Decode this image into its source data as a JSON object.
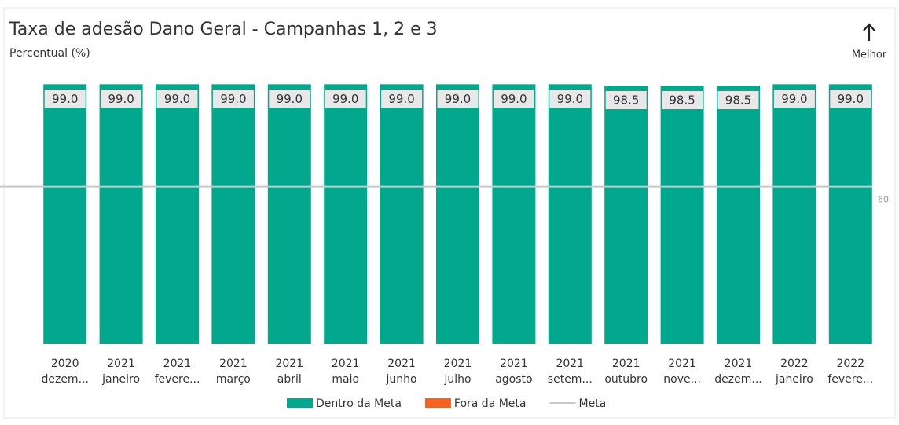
{
  "chart_data": {
    "type": "bar",
    "title": "Taxa de adesão Dano Geral - Campanhas 1, 2 e 3",
    "subtitle": "Percentual (%)",
    "annotation": "Melhor",
    "categories": [
      [
        "2020",
        "dezem..."
      ],
      [
        "2021",
        "janeiro"
      ],
      [
        "2021",
        "fevere..."
      ],
      [
        "2021",
        "março"
      ],
      [
        "2021",
        "abril"
      ],
      [
        "2021",
        "maio"
      ],
      [
        "2021",
        "junho"
      ],
      [
        "2021",
        "julho"
      ],
      [
        "2021",
        "agosto"
      ],
      [
        "2021",
        "setem..."
      ],
      [
        "2021",
        "outubro"
      ],
      [
        "2021",
        "nove..."
      ],
      [
        "2021",
        "dezem..."
      ],
      [
        "2022",
        "janeiro"
      ],
      [
        "2022",
        "fevere..."
      ]
    ],
    "series": [
      {
        "name": "Dentro da Meta",
        "color": "#01a88d",
        "values": [
          99,
          99,
          99,
          99,
          99,
          99,
          99,
          99,
          99,
          99,
          98.5,
          98.5,
          98.5,
          99,
          99
        ],
        "value_labels": [
          "99.0",
          "99.0",
          "99.0",
          "99.0",
          "99.0",
          "99.0",
          "99.0",
          "99.0",
          "99.0",
          "99.0",
          "98.5",
          "98.5",
          "98.5",
          "99.0",
          "99.0"
        ]
      },
      {
        "name": "Fora da Meta",
        "color": "#f5641e",
        "values": [
          0,
          0,
          0,
          0,
          0,
          0,
          0,
          0,
          0,
          0,
          0,
          0,
          0,
          0,
          0
        ]
      }
    ],
    "target": {
      "name": "Meta",
      "color": "#c8c8c8",
      "value": 60
    },
    "ylim": [
      0,
      100
    ]
  }
}
